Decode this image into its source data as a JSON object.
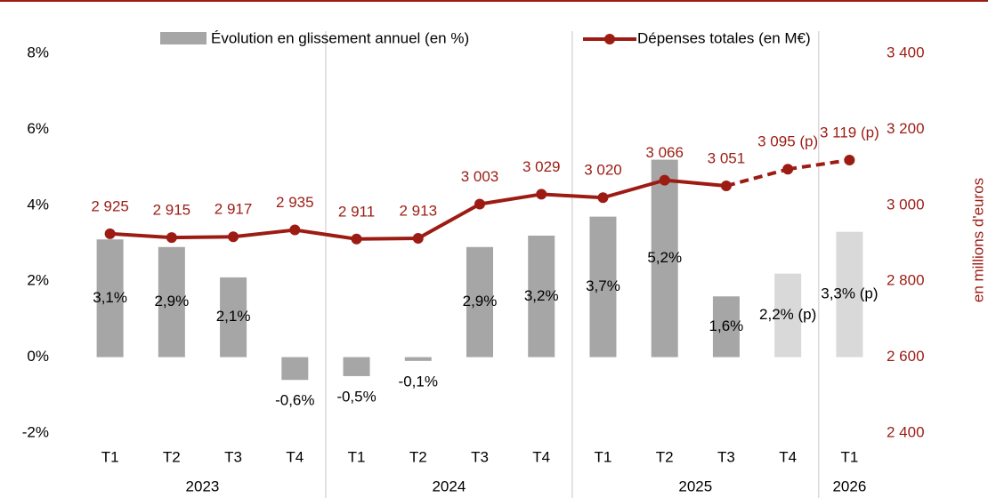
{
  "chart_data": {
    "type": "bar",
    "groups": [
      {
        "name": "2023",
        "categories": [
          "T1",
          "T2",
          "T3",
          "T4"
        ]
      },
      {
        "name": "2024",
        "categories": [
          "T1",
          "T2",
          "T3",
          "T4"
        ]
      },
      {
        "name": "2025",
        "categories": [
          "T1",
          "T2",
          "T3",
          "T4"
        ]
      },
      {
        "name": "2026",
        "categories": [
          "T1"
        ]
      }
    ],
    "series": [
      {
        "name": "Évolution en glissement annuel (en %)",
        "type": "bar",
        "axis": "y",
        "color": "#a6a6a6",
        "colors": [
          "#a6a6a6",
          "#a6a6a6",
          "#a6a6a6",
          "#a6a6a6",
          "#a6a6a6",
          "#a6a6a6",
          "#a6a6a6",
          "#a6a6a6",
          "#a6a6a6",
          "#a6a6a6",
          "#a6a6a6",
          "#d9d9d9",
          "#d9d9d9"
        ],
        "values": [
          3.1,
          2.9,
          2.1,
          -0.6,
          -0.5,
          -0.1,
          2.9,
          3.2,
          3.7,
          5.2,
          1.6,
          2.2,
          3.3
        ],
        "value_labels": [
          "3,1%",
          "2,9%",
          "2,1%",
          "-0,6%",
          "-0,5%",
          "-0,1%",
          "2,9%",
          "3,2%",
          "3,7%",
          "5,2%",
          "1,6%",
          "2,2% (p)",
          "3,3% (p)"
        ]
      },
      {
        "name": "Dépenses totales (en M€)",
        "type": "line",
        "axis": "y2",
        "color": "#9c1c14",
        "styles": [
          "solid",
          "solid",
          "solid",
          "solid",
          "solid",
          "solid",
          "solid",
          "solid",
          "solid",
          "solid",
          "solid",
          "dashed",
          "dashed"
        ],
        "values": [
          2925,
          2915,
          2917,
          2935,
          2911,
          2913,
          3003,
          3029,
          3020,
          3066,
          3051,
          3095,
          3119
        ],
        "value_labels": [
          "2 925",
          "2 915",
          "2 917",
          "2 935",
          "2 911",
          "2 913",
          "3 003",
          "3 029",
          "3 020",
          "3 066",
          "3 051",
          "3 095 (p)",
          "3 119 (p)"
        ]
      }
    ],
    "ylim": [
      -2,
      8
    ],
    "yticks": [
      {
        "value": -2,
        "label": "-2%"
      },
      {
        "value": 0,
        "label": "0%"
      },
      {
        "value": 2,
        "label": "2%"
      },
      {
        "value": 4,
        "label": "4%"
      },
      {
        "value": 6,
        "label": "6%"
      },
      {
        "value": 8,
        "label": "8%"
      }
    ],
    "y2lim": [
      2400,
      3400
    ],
    "y2ticks": [
      {
        "value": 2400,
        "label": "2 400"
      },
      {
        "value": 2600,
        "label": "2 600"
      },
      {
        "value": 2800,
        "label": "2 800"
      },
      {
        "value": 3000,
        "label": "3 000"
      },
      {
        "value": 3200,
        "label": "3 200"
      },
      {
        "value": 3400,
        "label": "3 400"
      }
    ],
    "y2label": "en millions d'euros",
    "legend": "top"
  }
}
